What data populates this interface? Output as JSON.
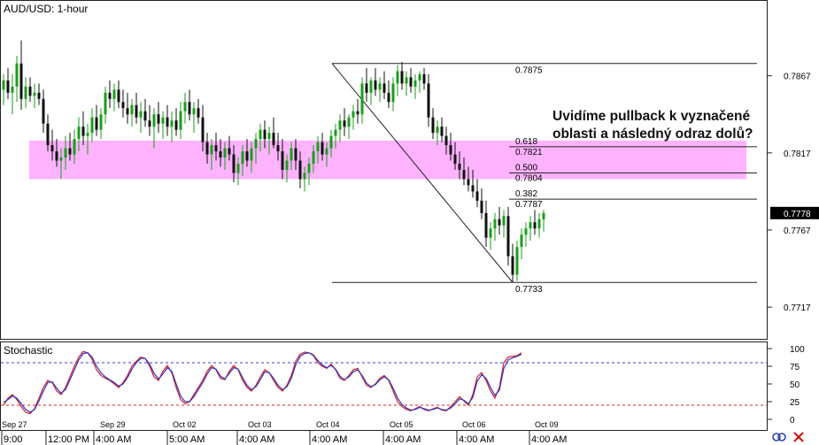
{
  "chart_data": [
    {
      "type": "candlestick",
      "title": "AUD/USD: 1-hour",
      "y_ticks": [
        "0.7867",
        "0.7817",
        "0.7767",
        "0.7717"
      ],
      "current_price": "0.7778",
      "ylim": [
        0.7697,
        0.7915
      ],
      "candles_ohlc": [
        [
          0.7858,
          0.7868,
          0.7848,
          0.7864
        ],
        [
          0.7864,
          0.7872,
          0.7852,
          0.7856
        ],
        [
          0.7856,
          0.7868,
          0.7842,
          0.786
        ],
        [
          0.786,
          0.788,
          0.785,
          0.7875
        ],
        [
          0.7875,
          0.789,
          0.7845,
          0.7852
        ],
        [
          0.7852,
          0.7866,
          0.7846,
          0.786
        ],
        [
          0.786,
          0.7866,
          0.785,
          0.7854
        ],
        [
          0.7854,
          0.7862,
          0.7846,
          0.7856
        ],
        [
          0.7856,
          0.7862,
          0.7848,
          0.7852
        ],
        [
          0.7852,
          0.7858,
          0.783,
          0.7836
        ],
        [
          0.7836,
          0.7842,
          0.7818,
          0.7822
        ],
        [
          0.7822,
          0.7832,
          0.7812,
          0.7818
        ],
        [
          0.7818,
          0.7826,
          0.7808,
          0.7812
        ],
        [
          0.7812,
          0.782,
          0.78,
          0.7814
        ],
        [
          0.7814,
          0.7828,
          0.7806,
          0.782
        ],
        [
          0.782,
          0.783,
          0.7812,
          0.7816
        ],
        [
          0.7816,
          0.7832,
          0.781,
          0.7826
        ],
        [
          0.7826,
          0.784,
          0.7818,
          0.7834
        ],
        [
          0.7834,
          0.7844,
          0.7822,
          0.7828
        ],
        [
          0.7828,
          0.7836,
          0.7816,
          0.783
        ],
        [
          0.783,
          0.7846,
          0.7824,
          0.784
        ],
        [
          0.784,
          0.7848,
          0.7828,
          0.7832
        ],
        [
          0.7832,
          0.7846,
          0.7826,
          0.7842
        ],
        [
          0.7842,
          0.786,
          0.7836,
          0.7856
        ],
        [
          0.7856,
          0.7864,
          0.7846,
          0.7852
        ],
        [
          0.7852,
          0.7862,
          0.7844,
          0.7858
        ],
        [
          0.7858,
          0.7864,
          0.7846,
          0.785
        ],
        [
          0.785,
          0.7858,
          0.784,
          0.7846
        ],
        [
          0.7846,
          0.7856,
          0.7836,
          0.7842
        ],
        [
          0.7842,
          0.7852,
          0.7834,
          0.7848
        ],
        [
          0.7848,
          0.7856,
          0.7836,
          0.784
        ],
        [
          0.784,
          0.785,
          0.783,
          0.7844
        ],
        [
          0.7844,
          0.7852,
          0.7834,
          0.7838
        ],
        [
          0.7838,
          0.7848,
          0.7828,
          0.7834
        ],
        [
          0.7834,
          0.7846,
          0.782,
          0.7842
        ],
        [
          0.7842,
          0.785,
          0.783,
          0.7836
        ],
        [
          0.7836,
          0.7844,
          0.7826,
          0.784
        ],
        [
          0.784,
          0.7848,
          0.7828,
          0.7834
        ],
        [
          0.7834,
          0.7844,
          0.7824,
          0.7838
        ],
        [
          0.7838,
          0.7846,
          0.7828,
          0.7832
        ],
        [
          0.7832,
          0.785,
          0.7826,
          0.7844
        ],
        [
          0.7844,
          0.7856,
          0.7836,
          0.785
        ],
        [
          0.785,
          0.7858,
          0.7838,
          0.7842
        ],
        [
          0.7842,
          0.785,
          0.783,
          0.7846
        ],
        [
          0.7846,
          0.7852,
          0.7836,
          0.784
        ],
        [
          0.784,
          0.7848,
          0.7818,
          0.7824
        ],
        [
          0.7824,
          0.783,
          0.781,
          0.7816
        ],
        [
          0.7816,
          0.7826,
          0.7806,
          0.7822
        ],
        [
          0.7822,
          0.783,
          0.7812,
          0.7818
        ],
        [
          0.7818,
          0.7826,
          0.7808,
          0.7814
        ],
        [
          0.7814,
          0.7824,
          0.7806,
          0.782
        ],
        [
          0.782,
          0.7828,
          0.7812,
          0.7816
        ],
        [
          0.7816,
          0.7822,
          0.7798,
          0.7804
        ],
        [
          0.7804,
          0.7814,
          0.7796,
          0.781
        ],
        [
          0.781,
          0.7822,
          0.7802,
          0.7818
        ],
        [
          0.7818,
          0.7826,
          0.7808,
          0.7812
        ],
        [
          0.7812,
          0.7824,
          0.7804,
          0.782
        ],
        [
          0.782,
          0.783,
          0.781,
          0.7826
        ],
        [
          0.7826,
          0.7836,
          0.7818,
          0.7832
        ],
        [
          0.7832,
          0.7838,
          0.782,
          0.7826
        ],
        [
          0.7826,
          0.7834,
          0.7816,
          0.783
        ],
        [
          0.783,
          0.784,
          0.782,
          0.7822
        ],
        [
          0.7822,
          0.783,
          0.7812,
          0.7818
        ],
        [
          0.7818,
          0.7826,
          0.78,
          0.7806
        ],
        [
          0.7806,
          0.7816,
          0.7798,
          0.7812
        ],
        [
          0.7812,
          0.7824,
          0.7806,
          0.782
        ],
        [
          0.782,
          0.7826,
          0.7806,
          0.7812
        ],
        [
          0.7812,
          0.7818,
          0.7794,
          0.78
        ],
        [
          0.78,
          0.7808,
          0.7792,
          0.7804
        ],
        [
          0.7804,
          0.7814,
          0.7796,
          0.781
        ],
        [
          0.781,
          0.7822,
          0.7804,
          0.7818
        ],
        [
          0.7818,
          0.7828,
          0.781,
          0.7824
        ],
        [
          0.7824,
          0.783,
          0.7812,
          0.7816
        ],
        [
          0.7816,
          0.7824,
          0.7808,
          0.782
        ],
        [
          0.782,
          0.7832,
          0.7814,
          0.7828
        ],
        [
          0.7828,
          0.7836,
          0.782,
          0.7832
        ],
        [
          0.7832,
          0.7842,
          0.7824,
          0.7838
        ],
        [
          0.7838,
          0.7846,
          0.7828,
          0.7834
        ],
        [
          0.7834,
          0.7842,
          0.7826,
          0.784
        ],
        [
          0.784,
          0.7848,
          0.7832,
          0.7844
        ],
        [
          0.7844,
          0.7852,
          0.7836,
          0.7842
        ],
        [
          0.7842,
          0.7866,
          0.7836,
          0.7862
        ],
        [
          0.7862,
          0.7872,
          0.785,
          0.7856
        ],
        [
          0.7856,
          0.7866,
          0.7848,
          0.7864
        ],
        [
          0.7864,
          0.7872,
          0.7854,
          0.7858
        ],
        [
          0.7858,
          0.7866,
          0.785,
          0.7862
        ],
        [
          0.7862,
          0.787,
          0.7852,
          0.7856
        ],
        [
          0.7856,
          0.7864,
          0.7846,
          0.785
        ],
        [
          0.785,
          0.7866,
          0.7844,
          0.7862
        ],
        [
          0.7862,
          0.7874,
          0.7854,
          0.787
        ],
        [
          0.787,
          0.7876,
          0.7858,
          0.7862
        ],
        [
          0.7862,
          0.787,
          0.7854,
          0.7866
        ],
        [
          0.7866,
          0.7872,
          0.7856,
          0.786
        ],
        [
          0.786,
          0.7868,
          0.7852,
          0.7864
        ],
        [
          0.7864,
          0.787,
          0.7856,
          0.7868
        ],
        [
          0.7868,
          0.7872,
          0.7858,
          0.7862
        ],
        [
          0.7862,
          0.7868,
          0.7834,
          0.784
        ],
        [
          0.784,
          0.7846,
          0.7826,
          0.783
        ],
        [
          0.783,
          0.7838,
          0.7822,
          0.7834
        ],
        [
          0.7834,
          0.784,
          0.7824,
          0.7828
        ],
        [
          0.7828,
          0.7834,
          0.7816,
          0.7822
        ],
        [
          0.7822,
          0.783,
          0.7812,
          0.7816
        ],
        [
          0.7816,
          0.7824,
          0.7806,
          0.781
        ],
        [
          0.781,
          0.7818,
          0.78,
          0.7806
        ],
        [
          0.7806,
          0.7814,
          0.7796,
          0.78
        ],
        [
          0.78,
          0.7808,
          0.7792,
          0.7796
        ],
        [
          0.7796,
          0.7806,
          0.7788,
          0.7792
        ],
        [
          0.7792,
          0.78,
          0.7782,
          0.7786
        ],
        [
          0.7786,
          0.7794,
          0.7774,
          0.7778
        ],
        [
          0.7778,
          0.7786,
          0.7756,
          0.7762
        ],
        [
          0.7762,
          0.7772,
          0.7754,
          0.7768
        ],
        [
          0.7768,
          0.7778,
          0.776,
          0.7774
        ],
        [
          0.7774,
          0.7782,
          0.7764,
          0.777
        ],
        [
          0.777,
          0.778,
          0.7762,
          0.7776
        ],
        [
          0.7776,
          0.7782,
          0.7744,
          0.775
        ],
        [
          0.775,
          0.7758,
          0.7733,
          0.7738
        ],
        [
          0.7738,
          0.776,
          0.7734,
          0.7756
        ],
        [
          0.7756,
          0.7768,
          0.7748,
          0.7764
        ],
        [
          0.7764,
          0.7772,
          0.7756,
          0.7768
        ],
        [
          0.7768,
          0.7776,
          0.776,
          0.7772
        ],
        [
          0.7772,
          0.778,
          0.7764,
          0.7768
        ],
        [
          0.7768,
          0.7778,
          0.7762,
          0.7774
        ],
        [
          0.7774,
          0.778,
          0.7766,
          0.7778
        ]
      ],
      "fibonacci": {
        "high": "0.7875",
        "low": "0.7733",
        "levels": [
          {
            "ratio": "0.618",
            "price": "0.7821"
          },
          {
            "ratio": "0.500",
            "price": "0.7804"
          },
          {
            "ratio": "0.382",
            "price": "0.7787"
          }
        ]
      },
      "highlight_zone": [
        0.7804,
        0.7821
      ],
      "annotation_line1": "Uvidíme pullback k vyznačené",
      "annotation_line2": "oblasti a následný odraz dolů?"
    },
    {
      "type": "line",
      "title": "Stochastic",
      "y_ticks": [
        "100",
        "75",
        "50",
        "25",
        "0"
      ],
      "ylim": [
        0,
        100
      ],
      "levels": [
        80,
        20
      ],
      "series": [
        {
          "color": "#d62020",
          "values": [
            20,
            30,
            35,
            28,
            18,
            10,
            8,
            15,
            30,
            45,
            55,
            52,
            40,
            35,
            45,
            60,
            75,
            88,
            96,
            94,
            85,
            70,
            62,
            58,
            55,
            50,
            45,
            52,
            62,
            75,
            82,
            88,
            86,
            75,
            60,
            55,
            68,
            76,
            66,
            45,
            28,
            22,
            25,
            35,
            45,
            55,
            68,
            76,
            70,
            58,
            56,
            68,
            76,
            70,
            55,
            45,
            40,
            48,
            60,
            70,
            66,
            55,
            45,
            40,
            48,
            62,
            82,
            92,
            95,
            94,
            90,
            80,
            75,
            72,
            78,
            70,
            58,
            55,
            62,
            70,
            72,
            60,
            48,
            45,
            50,
            58,
            62,
            55,
            40,
            25,
            18,
            14,
            12,
            15,
            18,
            14,
            12,
            15,
            17,
            13,
            12,
            18,
            25,
            32,
            26,
            20,
            35,
            60,
            66,
            55,
            40,
            30,
            45,
            80,
            88,
            89,
            90,
            94
          ]
        },
        {
          "color": "#2e35c8",
          "values": [
            24,
            28,
            33,
            30,
            22,
            14,
            10,
            14,
            26,
            40,
            52,
            53,
            44,
            37,
            42,
            56,
            70,
            84,
            93,
            94,
            88,
            75,
            66,
            60,
            56,
            52,
            47,
            50,
            59,
            71,
            80,
            86,
            86,
            78,
            65,
            57,
            64,
            73,
            68,
            50,
            33,
            25,
            25,
            32,
            42,
            52,
            64,
            73,
            71,
            61,
            57,
            65,
            73,
            71,
            59,
            48,
            42,
            46,
            56,
            67,
            66,
            58,
            48,
            42,
            46,
            58,
            77,
            89,
            93,
            94,
            91,
            83,
            77,
            73,
            76,
            71,
            61,
            56,
            60,
            67,
            70,
            62,
            51,
            46,
            49,
            56,
            60,
            56,
            44,
            30,
            21,
            16,
            13,
            14,
            17,
            15,
            13,
            14,
            16,
            14,
            13,
            16,
            22,
            29,
            27,
            22,
            31,
            54,
            63,
            58,
            45,
            34,
            41,
            72,
            84,
            87,
            89,
            92
          ]
        }
      ]
    }
  ],
  "x_axis": {
    "dates": [
      "Sep 27",
      "Sep 29",
      "Oct 02",
      "Oct 03",
      "Oct 04",
      "Oct 05",
      "Oct 06",
      "Oct 09"
    ],
    "times": [
      "9:00",
      "12:00 PM",
      "4:00 AM",
      "5:00 AM",
      "4:00 AM",
      "4:00 AM",
      "4:00 AM",
      "4:00 AM",
      "4:00 AM"
    ]
  },
  "colors": {
    "up": "#1a9e1a",
    "down": "#111111",
    "zone": "#ffb3ff",
    "price_label_bg": "#000000",
    "overbought": "#3a3adf",
    "oversold": "#e02020"
  },
  "icons": [
    "link-icon",
    "close-icon"
  ]
}
